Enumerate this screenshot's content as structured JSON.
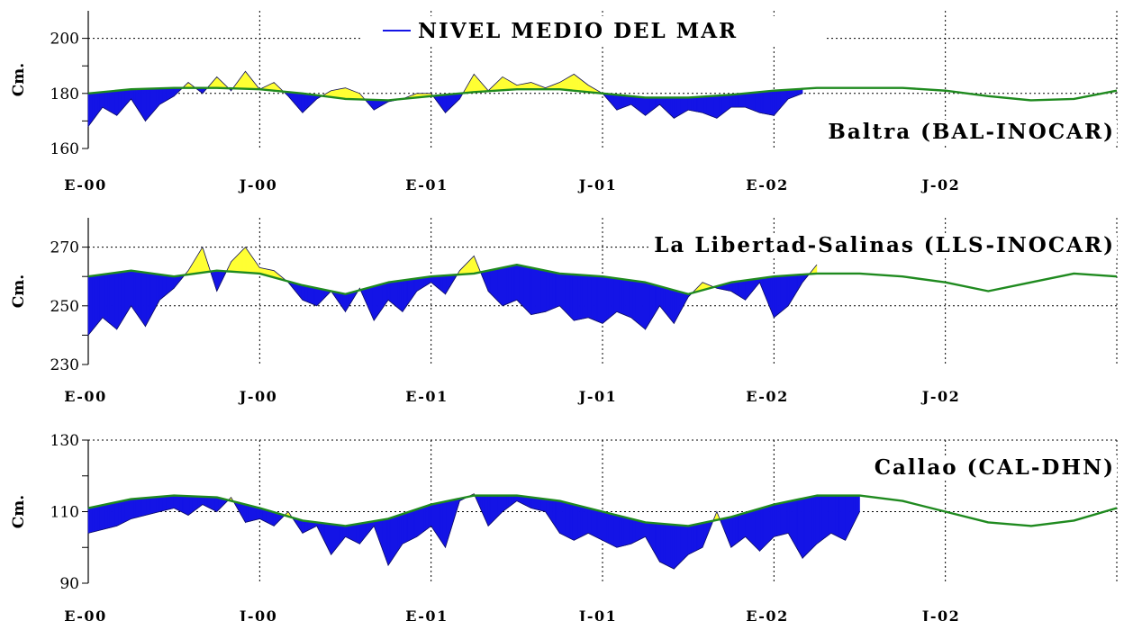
{
  "legend": {
    "label": "NIVEL MEDIO DEL MAR"
  },
  "colors": {
    "mean_line": "#1f8a1f",
    "below_fill": "#1414e6",
    "above_fill": "#ffff33",
    "grid": "#000000"
  },
  "chart_data": [
    {
      "type": "area",
      "title": "Baltra (BAL-INOCAR)",
      "ylabel": "Cm.",
      "ylim": [
        160,
        210
      ],
      "yticks": [
        160,
        180,
        200
      ],
      "x_tick_labels": [
        "E-00",
        "J-00",
        "E-01",
        "J-01",
        "E-02",
        "J-02"
      ],
      "x_range_months": [
        0,
        36
      ],
      "grid": true,
      "legend_position": "top-center",
      "mean_sea_level": {
        "x": [
          0,
          1.5,
          3,
          4.5,
          6,
          7.5,
          9,
          10.5,
          12,
          13.5,
          15,
          16.5,
          18,
          19.5,
          21,
          22.5,
          24,
          25.5,
          27,
          28.5,
          30,
          31.5,
          33,
          34.5,
          36
        ],
        "y": [
          180,
          181.5,
          182,
          182,
          181.5,
          180,
          178,
          177.5,
          179,
          180.5,
          181.5,
          181.5,
          180,
          178.5,
          178.5,
          179.5,
          181,
          182,
          182,
          182,
          181,
          179,
          177.5,
          178,
          181
        ]
      },
      "observed": {
        "x": [
          0,
          0.5,
          1,
          1.5,
          2,
          2.5,
          3,
          3.5,
          4,
          4.5,
          5,
          5.5,
          6,
          6.5,
          7,
          7.5,
          8,
          8.5,
          9,
          9.5,
          10,
          10.5,
          11,
          11.5,
          12,
          12.5,
          13,
          13.5,
          14,
          14.5,
          15,
          15.5,
          16,
          16.5,
          17,
          17.5,
          18,
          18.5,
          19,
          19.5,
          20,
          20.5,
          21,
          21.5,
          22,
          22.5,
          23,
          23.5,
          24,
          24.5,
          25
        ],
        "y": [
          168,
          175,
          172,
          178,
          170,
          176,
          179,
          184,
          180,
          186,
          181,
          188,
          181.5,
          184,
          179,
          173,
          178,
          181,
          182,
          180,
          174,
          177,
          178,
          180,
          180,
          173,
          178,
          187,
          181,
          186,
          183,
          184,
          182,
          184,
          187,
          183,
          180,
          174,
          176,
          172,
          176,
          171,
          174,
          173,
          171,
          175,
          175,
          173,
          172,
          178,
          180
        ]
      }
    },
    {
      "type": "area",
      "title": "La Libertad-Salinas (LLS-INOCAR)",
      "ylabel": "Cm.",
      "ylim": [
        230,
        280
      ],
      "yticks": [
        230,
        250,
        270
      ],
      "x_tick_labels": [
        "E-00",
        "J-00",
        "E-01",
        "J-01",
        "E-02",
        "J-02"
      ],
      "x_range_months": [
        0,
        36
      ],
      "grid": true,
      "mean_sea_level": {
        "x": [
          0,
          1.5,
          3,
          4.5,
          6,
          7.5,
          9,
          10.5,
          12,
          13.5,
          15,
          16.5,
          18,
          19.5,
          21,
          22.5,
          24,
          25.5,
          27,
          28.5,
          30,
          31.5,
          33,
          34.5,
          36
        ],
        "y": [
          260,
          262,
          260,
          262,
          261,
          257,
          254,
          258,
          260,
          261,
          264,
          261,
          260,
          258,
          254,
          258,
          260,
          261,
          261,
          260,
          258,
          255,
          258,
          261,
          260
        ]
      },
      "observed": {
        "x": [
          0,
          0.5,
          1,
          1.5,
          2,
          2.5,
          3,
          3.5,
          4,
          4.5,
          5,
          5.5,
          6,
          6.5,
          7,
          7.5,
          8,
          8.5,
          9,
          9.5,
          10,
          10.5,
          11,
          11.5,
          12,
          12.5,
          13,
          13.5,
          14,
          14.5,
          15,
          15.5,
          16,
          16.5,
          17,
          17.5,
          18,
          18.5,
          19,
          19.5,
          20,
          20.5,
          21,
          21.5,
          22,
          22.5,
          23,
          23.5,
          24,
          24.5,
          25,
          25.5
        ],
        "y": [
          240,
          246,
          242,
          250,
          243,
          252,
          256,
          262,
          270,
          255,
          265,
          270,
          263,
          262,
          258,
          252,
          250,
          255,
          248,
          256,
          245,
          252,
          248,
          255,
          258,
          254,
          262,
          267,
          255,
          250,
          252,
          247,
          248,
          250,
          245,
          246,
          244,
          248,
          246,
          242,
          250,
          244,
          253,
          258,
          256,
          255,
          252,
          258,
          246,
          250,
          258,
          264
        ]
      }
    },
    {
      "type": "area",
      "title": "Callao (CAL-DHN)",
      "ylabel": "Cm.",
      "ylim": [
        90,
        130
      ],
      "yticks": [
        90,
        110,
        130
      ],
      "x_tick_labels": [
        "E-00",
        "J-00",
        "E-01",
        "J-01",
        "E-02",
        "J-02"
      ],
      "x_range_months": [
        0,
        36
      ],
      "grid": true,
      "mean_sea_level": {
        "x": [
          0,
          1.5,
          3,
          4.5,
          6,
          7.5,
          9,
          10.5,
          12,
          13.5,
          15,
          16.5,
          18,
          19.5,
          21,
          22.5,
          24,
          25.5,
          27,
          28.5,
          30,
          31.5,
          33,
          34.5,
          36
        ],
        "y": [
          111,
          113.5,
          114.5,
          114,
          111,
          107.5,
          106,
          108,
          112,
          114.5,
          114.5,
          113,
          110,
          107,
          106,
          108.5,
          112,
          114.5,
          114.5,
          113,
          110,
          107,
          106,
          107.5,
          111
        ]
      },
      "observed": {
        "x": [
          0,
          0.5,
          1,
          1.5,
          2,
          2.5,
          3,
          3.5,
          4,
          4.5,
          5,
          5.5,
          6,
          6.5,
          7,
          7.5,
          8,
          8.5,
          9,
          9.5,
          10,
          10.5,
          11,
          11.5,
          12,
          12.5,
          13,
          13.5,
          14,
          14.5,
          15,
          15.5,
          16,
          16.5,
          17,
          17.5,
          18,
          18.5,
          19,
          19.5,
          20,
          20.5,
          21,
          21.5,
          22,
          22.5,
          23,
          23.5,
          24,
          24.5,
          25,
          25.5,
          26,
          26.5,
          27
        ],
        "y": [
          104,
          105,
          106,
          108,
          109,
          110,
          111,
          109,
          112,
          110,
          114,
          107,
          108,
          106,
          110,
          104,
          106,
          98,
          103,
          101,
          106,
          95,
          101,
          103,
          106,
          100,
          113,
          115,
          106,
          110,
          113,
          111,
          110,
          104,
          102,
          104,
          102,
          100,
          101,
          103,
          96,
          94,
          98,
          100,
          110,
          100,
          103,
          99,
          103,
          104,
          97,
          101,
          104,
          102,
          110
        ]
      }
    }
  ]
}
